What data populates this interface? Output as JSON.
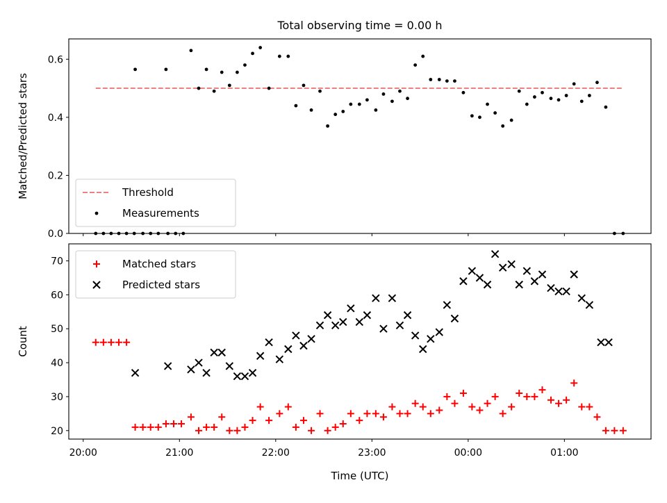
{
  "title": "Total observing time = 0.00 h",
  "colors": {
    "threshold": "#f08080",
    "measurement": "#000000",
    "matched": "#ff0000",
    "predicted": "#000000"
  },
  "chart_data": [
    {
      "type": "scatter",
      "ylabel": "Matched/Predicted stars",
      "xlabel": "",
      "xlim": [
        19.85,
        25.9
      ],
      "ylim": [
        0,
        0.67
      ],
      "yticks": [
        0.0,
        0.2,
        0.4,
        0.6
      ],
      "ytick_labels": [
        "0.0",
        "0.2",
        "0.4",
        "0.6"
      ],
      "xticks": [
        20,
        21,
        22,
        23,
        24,
        25
      ],
      "legend": "lower-left",
      "threshold": {
        "name": "Threshold",
        "value": 0.5,
        "x": [
          20.13,
          25.6
        ]
      },
      "series": [
        {
          "name": "Measurements",
          "x": [
            20.13,
            20.21,
            20.29,
            20.37,
            20.45,
            20.53,
            20.54,
            20.62,
            20.7,
            20.78,
            20.86,
            20.88,
            20.96,
            21.04,
            21.12,
            21.2,
            21.28,
            21.36,
            21.44,
            21.52,
            21.6,
            21.68,
            21.76,
            21.84,
            21.93,
            22.04,
            22.13,
            22.21,
            22.29,
            22.37,
            22.46,
            22.54,
            22.62,
            22.7,
            22.78,
            22.87,
            22.95,
            23.04,
            23.12,
            23.21,
            23.29,
            23.37,
            23.45,
            23.53,
            23.61,
            23.7,
            23.78,
            23.86,
            23.95,
            24.04,
            24.12,
            24.2,
            24.28,
            24.36,
            24.45,
            24.53,
            24.61,
            24.69,
            24.77,
            24.86,
            24.94,
            25.02,
            25.1,
            25.18,
            25.26,
            25.34,
            25.43,
            25.52,
            25.61
          ],
          "y": [
            0,
            0,
            0,
            0,
            0,
            0,
            0.565,
            0,
            0,
            0,
            0.565,
            0,
            0,
            0,
            0.63,
            0.5,
            0.565,
            0.49,
            0.555,
            0.51,
            0.555,
            0.58,
            0.62,
            0.64,
            0.5,
            0.61,
            0.61,
            0.44,
            0.51,
            0.425,
            0.49,
            0.37,
            0.41,
            0.42,
            0.445,
            0.445,
            0.46,
            0.425,
            0.48,
            0.455,
            0.49,
            0.465,
            0.58,
            0.61,
            0.53,
            0.53,
            0.525,
            0.525,
            0.485,
            0.405,
            0.4,
            0.445,
            0.415,
            0.37,
            0.39,
            0.49,
            0.445,
            0.47,
            0.485,
            0.465,
            0.46,
            0.475,
            0.515,
            0.455,
            0.475,
            0.52,
            0.435,
            0,
            0
          ]
        }
      ]
    },
    {
      "type": "scatter",
      "ylabel": "Count",
      "xlabel": "Time (UTC)",
      "xlim": [
        19.85,
        25.9
      ],
      "ylim": [
        17.5,
        75
      ],
      "yticks": [
        20,
        30,
        40,
        50,
        60,
        70
      ],
      "ytick_labels": [
        "20",
        "30",
        "40",
        "50",
        "60",
        "70"
      ],
      "xticks": [
        20,
        21,
        22,
        23,
        24,
        25
      ],
      "xtick_labels": [
        "20:00",
        "21:00",
        "22:00",
        "23:00",
        "00:00",
        "01:00"
      ],
      "legend": "top-left",
      "series": [
        {
          "name": "Matched stars",
          "marker": "plus",
          "x": [
            20.13,
            20.21,
            20.29,
            20.37,
            20.45,
            20.54,
            20.62,
            20.7,
            20.78,
            20.86,
            20.94,
            21.02,
            21.12,
            21.2,
            21.28,
            21.36,
            21.44,
            21.52,
            21.6,
            21.68,
            21.76,
            21.84,
            21.93,
            22.04,
            22.13,
            22.21,
            22.29,
            22.37,
            22.46,
            22.54,
            22.62,
            22.7,
            22.78,
            22.87,
            22.95,
            23.04,
            23.12,
            23.21,
            23.29,
            23.37,
            23.45,
            23.53,
            23.61,
            23.7,
            23.78,
            23.86,
            23.95,
            24.04,
            24.12,
            24.2,
            24.28,
            24.36,
            24.45,
            24.53,
            24.61,
            24.69,
            24.77,
            24.86,
            24.94,
            25.02,
            25.1,
            25.18,
            25.26,
            25.34,
            25.43,
            25.52,
            25.61
          ],
          "y": [
            46,
            46,
            46,
            46,
            46,
            21,
            21,
            21,
            21,
            22,
            22,
            22,
            24,
            20,
            21,
            21,
            24,
            20,
            20,
            21,
            23,
            27,
            23,
            25,
            27,
            21,
            23,
            20,
            25,
            20,
            21,
            22,
            25,
            23,
            25,
            25,
            24,
            27,
            25,
            25,
            28,
            27,
            25,
            26,
            30,
            28,
            31,
            27,
            26,
            28,
            30,
            25,
            27,
            31,
            30,
            30,
            32,
            29,
            28,
            29,
            34,
            27,
            27,
            24,
            20,
            20,
            20
          ]
        },
        {
          "name": "Predicted stars",
          "marker": "x",
          "x": [
            20.54,
            20.88,
            21.12,
            21.2,
            21.28,
            21.36,
            21.44,
            21.52,
            21.6,
            21.68,
            21.76,
            21.84,
            21.93,
            22.04,
            22.13,
            22.21,
            22.29,
            22.37,
            22.46,
            22.54,
            22.62,
            22.7,
            22.78,
            22.87,
            22.95,
            23.04,
            23.12,
            23.21,
            23.29,
            23.37,
            23.45,
            23.53,
            23.61,
            23.7,
            23.78,
            23.86,
            23.95,
            24.04,
            24.12,
            24.2,
            24.28,
            24.36,
            24.45,
            24.53,
            24.61,
            24.69,
            24.77,
            24.86,
            24.94,
            25.02,
            25.1,
            25.18,
            25.26,
            25.38,
            25.46
          ],
          "y": [
            37,
            39,
            38,
            40,
            37,
            43,
            43,
            39,
            36,
            36,
            37,
            42,
            46,
            41,
            44,
            48,
            45,
            47,
            51,
            54,
            51,
            52,
            56,
            52,
            54,
            59,
            50,
            59,
            51,
            54,
            48,
            44,
            47,
            49,
            57,
            53,
            64,
            67,
            65,
            63,
            72,
            68,
            69,
            63,
            67,
            64,
            66,
            62,
            61,
            61,
            66,
            59,
            57,
            46,
            46
          ]
        }
      ]
    }
  ]
}
